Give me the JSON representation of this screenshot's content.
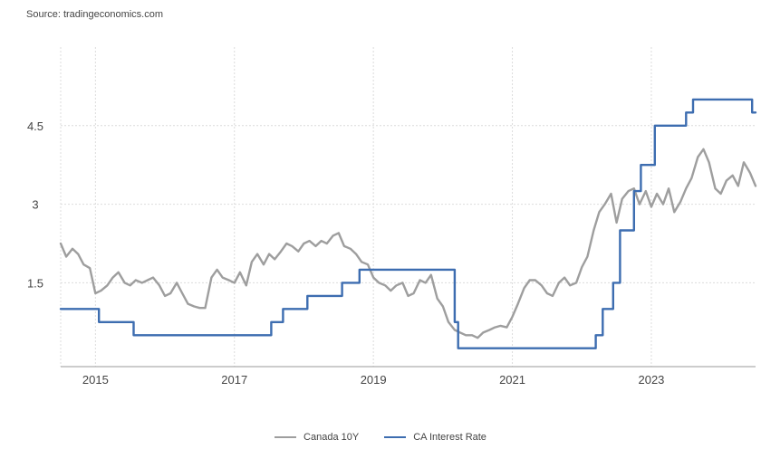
{
  "source_text": "Source: tradingeconomics.com",
  "chart_data": {
    "type": "line",
    "grid": true,
    "legend_placement": "bottom-center",
    "x_ticks": [
      "2015",
      "2017",
      "2019",
      "2021",
      "2023"
    ],
    "y_ticks": [
      "1.5",
      "3",
      "4.5"
    ],
    "xlim": [
      2014.5,
      2024.5
    ],
    "ylim": [
      -0.1,
      6.0
    ],
    "series": [
      {
        "name": "Canada 10Y",
        "color": "#9e9e9e",
        "x": [
          2014.5,
          2014.58,
          2014.67,
          2014.75,
          2014.83,
          2014.92,
          2015.0,
          2015.08,
          2015.17,
          2015.25,
          2015.33,
          2015.42,
          2015.5,
          2015.58,
          2015.67,
          2015.75,
          2015.83,
          2015.92,
          2016.0,
          2016.08,
          2016.17,
          2016.25,
          2016.33,
          2016.42,
          2016.5,
          2016.58,
          2016.67,
          2016.75,
          2016.83,
          2016.92,
          2017.0,
          2017.08,
          2017.17,
          2017.25,
          2017.33,
          2017.42,
          2017.5,
          2017.58,
          2017.67,
          2017.75,
          2017.83,
          2017.92,
          2018.0,
          2018.08,
          2018.17,
          2018.25,
          2018.33,
          2018.42,
          2018.5,
          2018.58,
          2018.67,
          2018.75,
          2018.83,
          2018.92,
          2019.0,
          2019.08,
          2019.17,
          2019.25,
          2019.33,
          2019.42,
          2019.5,
          2019.58,
          2019.67,
          2019.75,
          2019.83,
          2019.92,
          2020.0,
          2020.08,
          2020.17,
          2020.25,
          2020.33,
          2020.42,
          2020.5,
          2020.58,
          2020.67,
          2020.75,
          2020.83,
          2020.92,
          2021.0,
          2021.08,
          2021.17,
          2021.25,
          2021.33,
          2021.42,
          2021.5,
          2021.58,
          2021.67,
          2021.75,
          2021.83,
          2021.92,
          2022.0,
          2022.08,
          2022.17,
          2022.25,
          2022.33,
          2022.42,
          2022.5,
          2022.58,
          2022.67,
          2022.75,
          2022.83,
          2022.92,
          2023.0,
          2023.08,
          2023.17,
          2023.25,
          2023.33,
          2023.42,
          2023.5,
          2023.58,
          2023.67,
          2023.75,
          2023.83,
          2023.92,
          2024.0,
          2024.08,
          2024.17,
          2024.25,
          2024.33,
          2024.42,
          2024.5
        ],
        "y": [
          2.25,
          2.0,
          2.15,
          2.05,
          1.85,
          1.78,
          1.3,
          1.35,
          1.45,
          1.6,
          1.7,
          1.5,
          1.45,
          1.55,
          1.5,
          1.55,
          1.6,
          1.45,
          1.25,
          1.3,
          1.5,
          1.3,
          1.1,
          1.05,
          1.02,
          1.02,
          1.6,
          1.75,
          1.6,
          1.55,
          1.5,
          1.7,
          1.45,
          1.9,
          2.05,
          1.85,
          2.05,
          1.95,
          2.1,
          2.25,
          2.2,
          2.1,
          2.25,
          2.3,
          2.2,
          2.3,
          2.25,
          2.4,
          2.45,
          2.2,
          2.15,
          2.05,
          1.9,
          1.85,
          1.6,
          1.5,
          1.45,
          1.35,
          1.45,
          1.5,
          1.25,
          1.3,
          1.55,
          1.5,
          1.65,
          1.2,
          1.05,
          0.75,
          0.6,
          0.55,
          0.5,
          0.5,
          0.45,
          0.55,
          0.6,
          0.65,
          0.68,
          0.65,
          0.85,
          1.1,
          1.4,
          1.55,
          1.55,
          1.45,
          1.3,
          1.25,
          1.5,
          1.6,
          1.45,
          1.5,
          1.8,
          2.0,
          2.5,
          2.85,
          3.0,
          3.2,
          2.65,
          3.1,
          3.25,
          3.3,
          3.0,
          3.25,
          2.95,
          3.2,
          3.0,
          3.3,
          2.85,
          3.05,
          3.3,
          3.5,
          3.9,
          4.05,
          3.8,
          3.3,
          3.2,
          3.45,
          3.55,
          3.35,
          3.8,
          3.6,
          3.35
        ]
      },
      {
        "name": "CA Interest Rate",
        "color": "#3d6db0",
        "x": [
          2014.5,
          2015.05,
          2015.05,
          2015.55,
          2015.55,
          2017.53,
          2017.53,
          2017.7,
          2017.7,
          2018.05,
          2018.05,
          2018.55,
          2018.55,
          2018.8,
          2018.8,
          2020.17,
          2020.17,
          2020.22,
          2020.22,
          2022.2,
          2022.2,
          2022.3,
          2022.3,
          2022.45,
          2022.45,
          2022.55,
          2022.55,
          2022.75,
          2022.75,
          2022.85,
          2022.85,
          2023.05,
          2023.05,
          2023.5,
          2023.5,
          2023.6,
          2023.6,
          2024.45,
          2024.45,
          2024.5
        ],
        "y": [
          1.0,
          1.0,
          0.75,
          0.75,
          0.5,
          0.5,
          0.75,
          0.75,
          1.0,
          1.0,
          1.25,
          1.25,
          1.5,
          1.5,
          1.75,
          1.75,
          0.75,
          0.75,
          0.25,
          0.25,
          0.5,
          0.5,
          1.0,
          1.0,
          1.5,
          1.5,
          2.5,
          2.5,
          3.25,
          3.25,
          3.75,
          3.75,
          4.5,
          4.5,
          4.75,
          4.75,
          5.0,
          5.0,
          4.75,
          4.75
        ]
      }
    ]
  }
}
